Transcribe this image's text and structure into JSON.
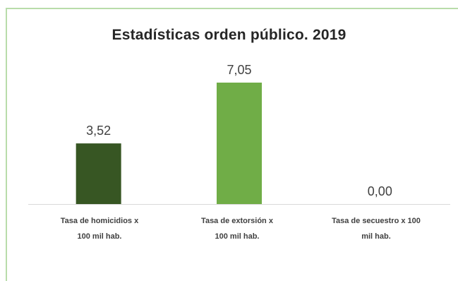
{
  "chart_data": {
    "type": "bar",
    "title": "Estadísticas orden público. 2019",
    "categories": [
      "Tasa de homicidios x 100 mil hab.",
      "Tasa de extorsión x 100 mil hab.",
      "Tasa de secuestro x 100 mil hab."
    ],
    "values": [
      3.52,
      7.05,
      0.0
    ],
    "data_labels": [
      "3,52",
      "7,05",
      "0,00"
    ],
    "bar_colors": [
      "#375623",
      "#70ad47",
      "#70ad47"
    ],
    "ylim": [
      0,
      7.05
    ],
    "grid": false,
    "legend": "none"
  },
  "labels_lines": [
    [
      "Tasa de homicidios x",
      "100 mil hab."
    ],
    [
      "Tasa de extorsión  x",
      "100 mil hab."
    ],
    [
      "Tasa de secuestro x 100",
      "mil hab."
    ]
  ],
  "colors": {
    "frame": "#b9dcaa",
    "axis": "#d9d9d9",
    "text": "#404040"
  }
}
